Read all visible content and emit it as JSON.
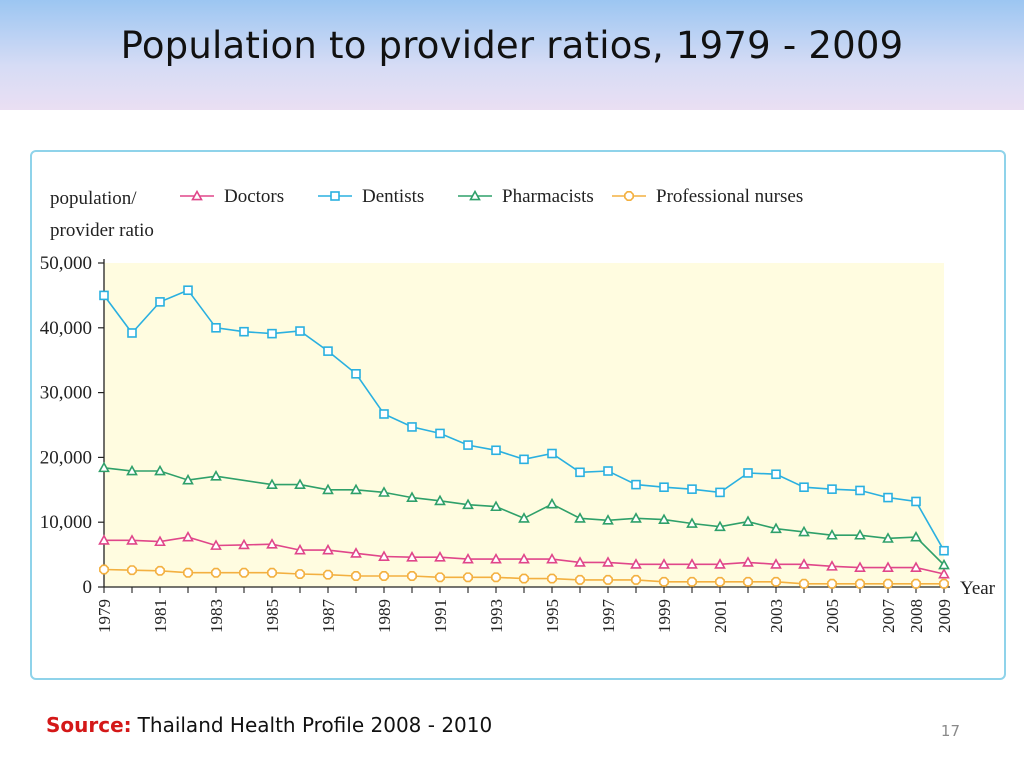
{
  "slide": {
    "title": "Population to provider ratios, 1979 - 2009",
    "source_label": "Source:",
    "source_text": "Thailand Health Profile 2008 - 2010",
    "page_number": "17"
  },
  "chart_data": {
    "type": "line",
    "ylabel_line1": "population/",
    "ylabel_line2": "provider ratio",
    "xlabel": "Year",
    "ylim": [
      0,
      50000
    ],
    "y_ticks": [
      0,
      10000,
      20000,
      30000,
      40000,
      50000
    ],
    "y_tick_labels": [
      "0",
      "10,000",
      "20,000",
      "30,000",
      "40,000",
      "50,000"
    ],
    "x": [
      1979,
      1980,
      1981,
      1982,
      1983,
      1984,
      1985,
      1986,
      1987,
      1988,
      1989,
      1990,
      1991,
      1992,
      1993,
      1994,
      1995,
      1996,
      1997,
      1998,
      1999,
      2000,
      2001,
      2002,
      2003,
      2004,
      2005,
      2006,
      2007,
      2008,
      2009
    ],
    "x_tick_labels": [
      "1979",
      "",
      "1981",
      "",
      "1983",
      "",
      "1985",
      "",
      "1987",
      "",
      "1989",
      "",
      "1991",
      "",
      "1993",
      "",
      "1995",
      "",
      "1997",
      "",
      "1999",
      "",
      "2001",
      "",
      "2003",
      "",
      "2005",
      "",
      "2007",
      "2008",
      "2009"
    ],
    "legend_position": "top",
    "plot_background": "#fffce0",
    "series": [
      {
        "name": "Doctors",
        "color": "#e0468a",
        "marker": "triangle",
        "values": [
          7200,
          7200,
          7000,
          7700,
          6400,
          6500,
          6600,
          5700,
          5700,
          5200,
          4700,
          4600,
          4600,
          4300,
          4300,
          4300,
          4300,
          3800,
          3800,
          3500,
          3500,
          3500,
          3500,
          3800,
          3500,
          3500,
          3200,
          3000,
          3000,
          3000,
          2000
        ]
      },
      {
        "name": "Dentists",
        "color": "#2ab0e0",
        "marker": "square",
        "values": [
          45000,
          39200,
          44000,
          45800,
          40000,
          39400,
          39100,
          39500,
          36400,
          32900,
          26700,
          24700,
          23700,
          21900,
          21100,
          19700,
          20600,
          17700,
          17900,
          15800,
          15400,
          15100,
          14600,
          17600,
          17400,
          15400,
          15100,
          14900,
          13800,
          13200,
          5600
        ]
      },
      {
        "name": "Pharmacists",
        "color": "#2fa06a",
        "marker": "triangle",
        "values": [
          18400,
          17900,
          17900,
          16500,
          17100,
          null,
          15800,
          15800,
          15000,
          15000,
          14600,
          13800,
          13300,
          12700,
          12400,
          10600,
          12800,
          10600,
          10300,
          10600,
          10400,
          9800,
          9300,
          10100,
          9000,
          8500,
          8000,
          8000,
          7500,
          7700,
          3400
        ]
      },
      {
        "name": "Professional nurses",
        "color": "#f3b040",
        "marker": "octagon",
        "values": [
          2700,
          2600,
          2500,
          2200,
          2200,
          2200,
          2200,
          2000,
          1900,
          1700,
          1700,
          1700,
          1500,
          1500,
          1500,
          1300,
          1300,
          1100,
          1100,
          1100,
          800,
          800,
          800,
          800,
          800,
          500,
          500,
          500,
          500,
          500,
          500
        ]
      }
    ]
  }
}
